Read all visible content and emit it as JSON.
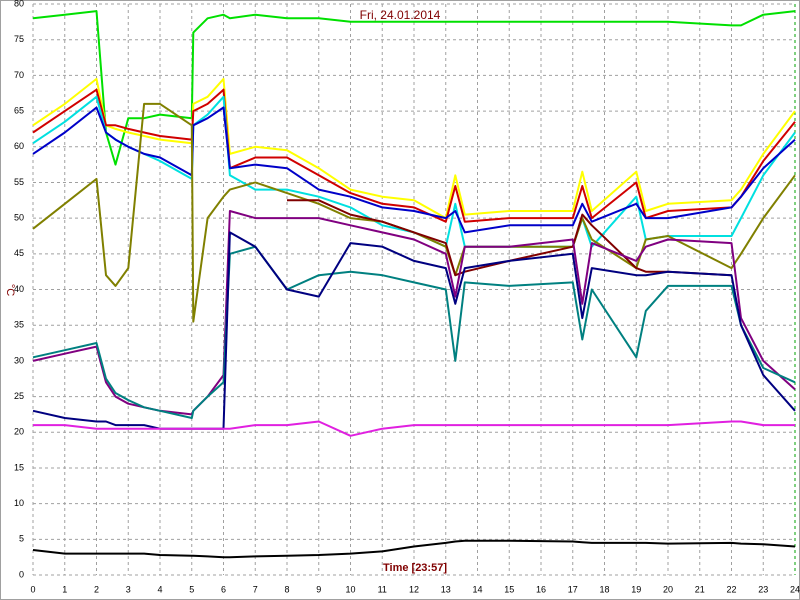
{
  "chart_data": {
    "type": "line",
    "title": "Fri, 24.01.2014",
    "xlabel": "Time [23:57]",
    "ylabel": "°C",
    "x": [
      0,
      1,
      2,
      2.3,
      2.6,
      3,
      3.5,
      4,
      5,
      5.05,
      5.5,
      6,
      6.2,
      7,
      8,
      9,
      10,
      11,
      12,
      13,
      13.3,
      13.6,
      15,
      17,
      17.3,
      17.6,
      19,
      19.3,
      20,
      22,
      22.3,
      23,
      24
    ],
    "series": [
      {
        "color": "#00e000",
        "values": [
          78,
          78.5,
          79,
          62,
          57.5,
          64,
          64,
          64.5,
          64,
          76,
          78,
          78.5,
          78,
          78.5,
          78,
          78,
          77.5,
          77.5,
          77.5,
          77.5,
          77.5,
          77.5,
          77.5,
          77.5,
          77.5,
          77.5,
          77.5,
          77.5,
          77.5,
          77,
          77,
          78.5,
          79
        ]
      },
      {
        "color": "#ffff00",
        "values": [
          63,
          66,
          69.5,
          63,
          62.5,
          62,
          61.5,
          61,
          60.5,
          66,
          67,
          69.5,
          59,
          60,
          59.5,
          57,
          54,
          53,
          52.5,
          50,
          56,
          50.5,
          51,
          51,
          56.5,
          51,
          56.5,
          51,
          52,
          52.5,
          54,
          59,
          65
        ]
      },
      {
        "color": "#d00000",
        "values": [
          62,
          65,
          68,
          63,
          63,
          62.5,
          62,
          61.5,
          61,
          65,
          66,
          68,
          57,
          58.5,
          58.5,
          56,
          53.5,
          52,
          51.5,
          49.5,
          54.5,
          49.5,
          50,
          50,
          54.5,
          50,
          55,
          50,
          51,
          51.5,
          53,
          58,
          63.5
        ]
      },
      {
        "color": "#00e0e0",
        "values": [
          60.5,
          63.5,
          67,
          62,
          61,
          60,
          59,
          58,
          55.5,
          63,
          64.5,
          67,
          56,
          54,
          54,
          53,
          51.5,
          49,
          48,
          46,
          52,
          46,
          46,
          46,
          50,
          46,
          53,
          47,
          47.5,
          47.5,
          50,
          56,
          62
        ]
      },
      {
        "color": "#0000c8",
        "values": [
          59,
          62,
          65.5,
          62,
          61,
          60,
          59,
          58.5,
          56,
          63,
          64,
          65.5,
          57,
          57.5,
          57,
          54,
          53,
          51.5,
          51,
          50,
          51,
          48,
          49,
          49,
          52,
          49.5,
          52,
          50,
          50,
          51.5,
          53,
          57,
          61
        ]
      },
      {
        "color": "#808000",
        "values": [
          48.5,
          52,
          55.5,
          42,
          40.5,
          43,
          66,
          66,
          63,
          35.5,
          50,
          53,
          54,
          55,
          53.5,
          52,
          50,
          49.5,
          48,
          46,
          42,
          46,
          46,
          46,
          50,
          47,
          43,
          47,
          47.5,
          43,
          45,
          50,
          56
        ]
      },
      {
        "color": "#800000",
        "values": [
          null,
          null,
          null,
          null,
          null,
          null,
          null,
          null,
          null,
          null,
          null,
          null,
          null,
          null,
          52.5,
          52.5,
          50.5,
          49.5,
          48,
          46.5,
          42,
          42.5,
          44,
          46,
          50.5,
          49,
          43,
          42.5,
          42.5,
          42,
          null,
          null,
          null
        ]
      },
      {
        "color": "#800080",
        "values": [
          30,
          31,
          32,
          27,
          25,
          24,
          23.5,
          23,
          22.5,
          23,
          25,
          28,
          51,
          50,
          50,
          50,
          49,
          48,
          47,
          45,
          39,
          46,
          46,
          47,
          38,
          46.5,
          44,
          46,
          47,
          46.5,
          36,
          30,
          26
        ]
      },
      {
        "color": "#008080",
        "values": [
          30.5,
          31.5,
          32.5,
          27.5,
          25.5,
          24.5,
          23.5,
          23,
          22,
          23,
          25,
          27,
          45,
          46,
          40,
          42,
          42.5,
          42,
          41,
          40,
          30,
          41,
          40.5,
          41,
          33,
          40,
          30.5,
          37,
          40.5,
          40.5,
          35,
          29,
          27
        ]
      },
      {
        "color": "#000080",
        "values": [
          23,
          22,
          21.5,
          21.5,
          21,
          21,
          21,
          20.5,
          20.5,
          20.5,
          20.5,
          20.5,
          48,
          46,
          40,
          39,
          46.5,
          46,
          44,
          43,
          38,
          43,
          44,
          45,
          36,
          43,
          42,
          42,
          42.5,
          42,
          35,
          28,
          23
        ]
      },
      {
        "color": "#e020e0",
        "values": [
          21,
          21,
          20.5,
          20.5,
          20.5,
          20.5,
          20.5,
          20.5,
          20.5,
          20.5,
          20.5,
          20.5,
          20.5,
          21,
          21,
          21.5,
          19.5,
          20.5,
          21,
          21,
          21,
          21,
          21,
          21,
          21,
          21,
          21,
          21,
          21,
          21.5,
          21.5,
          21,
          21
        ]
      },
      {
        "color": "#000000",
        "values": [
          3.5,
          3,
          3,
          3,
          3,
          3,
          3,
          2.8,
          2.7,
          2.7,
          2.6,
          2.5,
          2.5,
          2.6,
          2.7,
          2.8,
          3,
          3.3,
          4,
          4.5,
          4.7,
          4.8,
          4.8,
          4.7,
          4.6,
          4.5,
          4.5,
          4.5,
          4.4,
          4.5,
          4.4,
          4.3,
          4
        ]
      }
    ],
    "xlim": [
      0,
      24
    ],
    "xticks": [
      0,
      1,
      2,
      3,
      4,
      5,
      6,
      7,
      8,
      9,
      10,
      11,
      12,
      13,
      14,
      15,
      16,
      17,
      18,
      19,
      20,
      21,
      22,
      23,
      24
    ],
    "ylim": [
      0,
      80
    ],
    "yticks": [
      0,
      5,
      10,
      15,
      20,
      25,
      30,
      35,
      40,
      45,
      50,
      55,
      60,
      65,
      70,
      75,
      80
    ],
    "grid": true
  }
}
